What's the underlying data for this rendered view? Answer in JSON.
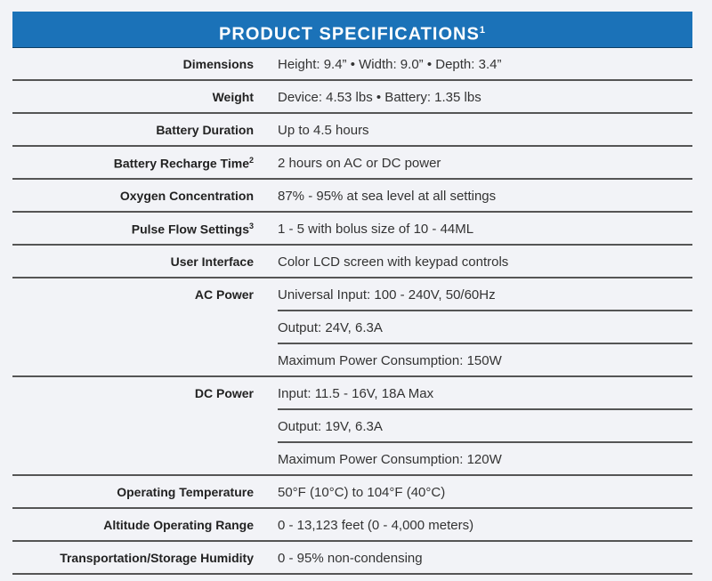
{
  "header": {
    "title": "PRODUCT SPECIFICATIONS",
    "footnote": "1"
  },
  "rows": [
    {
      "label": "Dimensions",
      "sup": "",
      "values": [
        "Height: 9.4” • Width: 9.0” • Depth: 3.4”"
      ]
    },
    {
      "label": "Weight",
      "sup": "",
      "values": [
        "Device: 4.53 lbs • Battery: 1.35 lbs"
      ]
    },
    {
      "label": "Battery Duration",
      "sup": "",
      "values": [
        "Up to 4.5 hours"
      ]
    },
    {
      "label": "Battery Recharge Time",
      "sup": "2",
      "values": [
        "2 hours on AC or DC power"
      ]
    },
    {
      "label": "Oxygen Concentration",
      "sup": "",
      "values": [
        "87% - 95% at sea level at all settings"
      ]
    },
    {
      "label": "Pulse Flow Settings",
      "sup": "3",
      "values": [
        "1 - 5 with bolus size of 10 - 44ML"
      ]
    },
    {
      "label": "User Interface",
      "sup": "",
      "values": [
        "Color LCD screen with keypad controls"
      ]
    },
    {
      "label": "AC Power",
      "sup": "",
      "values": [
        "Universal Input: 100 - 240V, 50/60Hz",
        "Output: 24V, 6.3A",
        "Maximum Power Consumption: 150W"
      ]
    },
    {
      "label": "DC Power",
      "sup": "",
      "values": [
        "Input: 11.5 - 16V, 18A Max",
        "Output: 19V, 6.3A",
        "Maximum Power Consumption: 120W"
      ]
    },
    {
      "label": "Operating Temperature",
      "sup": "",
      "values": [
        "50°F (10°C) to 104°F (40°C)"
      ]
    },
    {
      "label": "Altitude Operating Range",
      "sup": "",
      "values": [
        "0 - 13,123 feet (0 - 4,000 meters)"
      ]
    },
    {
      "label": "Transportation/Storage Humidity",
      "sup": "",
      "values": [
        "0 - 95% non-condensing"
      ]
    }
  ]
}
